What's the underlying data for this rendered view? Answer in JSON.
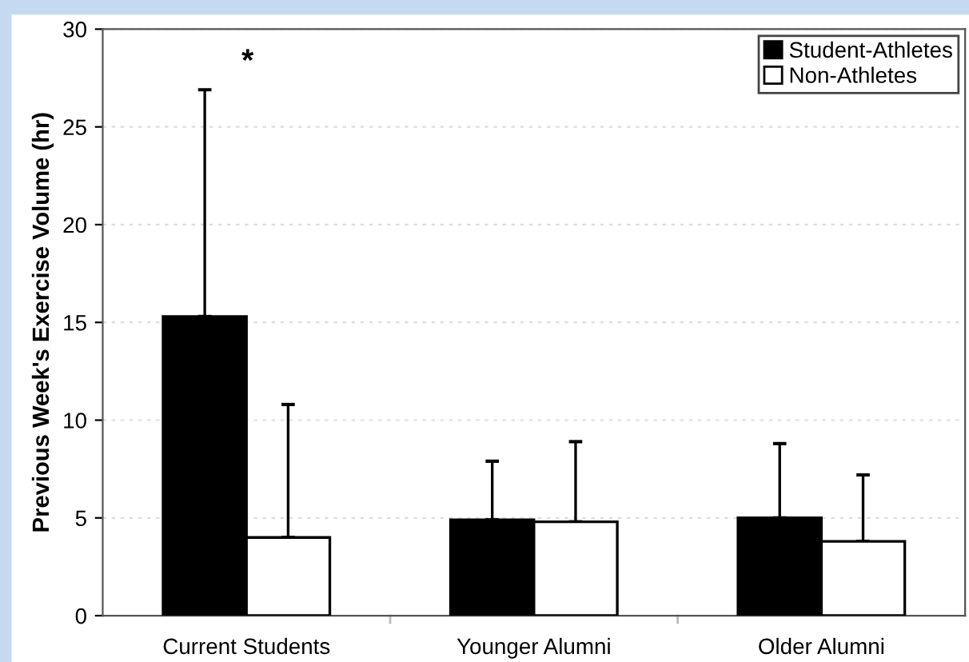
{
  "chart_data": {
    "type": "bar",
    "ylabel": "Previous Week's Exercise Volume (hr)",
    "categories": [
      "Current Students",
      "Younger Alumni",
      "Older Alumni"
    ],
    "series": [
      {
        "name": "Student-Athletes",
        "color": "#000000",
        "values": [
          15.3,
          4.9,
          5.0
        ],
        "errors": [
          [
            15.3,
            26.9
          ],
          [
            4.9,
            7.9
          ],
          [
            5.0,
            8.8
          ]
        ]
      },
      {
        "name": "Non-Athletes",
        "color": "#ffffff",
        "values": [
          4.0,
          4.8,
          3.8
        ],
        "errors": [
          [
            4.0,
            10.8
          ],
          [
            4.8,
            8.9
          ],
          [
            3.8,
            7.2
          ]
        ]
      }
    ],
    "annotations": [
      "*"
    ],
    "ylim": [
      0,
      30
    ],
    "yticks": [
      0,
      5,
      10,
      15,
      20,
      25,
      30
    ],
    "grid": "y",
    "legend": "top right"
  }
}
